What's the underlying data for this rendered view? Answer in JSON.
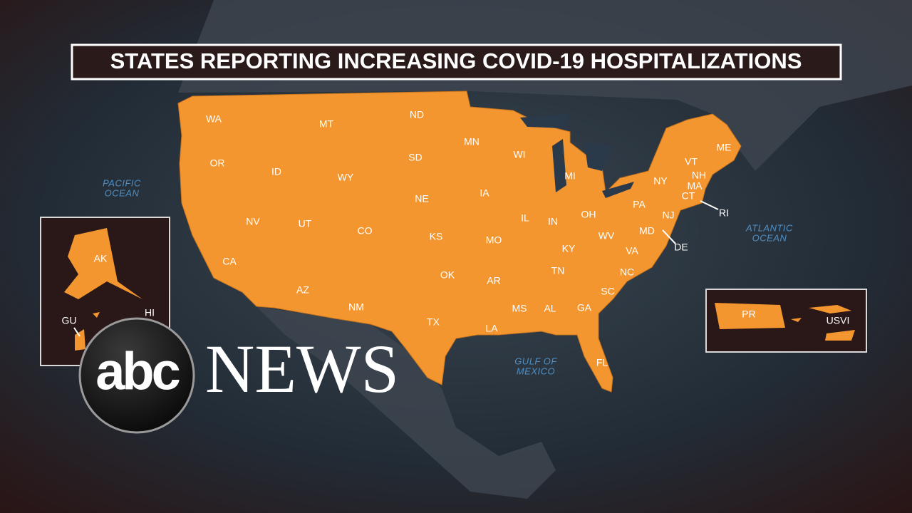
{
  "title": "STATES REPORTING INCREASING COVID-19 HOSPITALIZATIONS",
  "states": [
    "WA",
    "OR",
    "CA",
    "ID",
    "NV",
    "MT",
    "WY",
    "UT",
    "AZ",
    "CO",
    "NM",
    "ND",
    "SD",
    "NE",
    "KS",
    "OK",
    "TX",
    "MN",
    "IA",
    "MO",
    "AR",
    "LA",
    "WI",
    "IL",
    "MI",
    "IN",
    "OH",
    "KY",
    "TN",
    "MS",
    "AL",
    "GA",
    "FL",
    "SC",
    "NC",
    "VA",
    "WV",
    "MD",
    "DE",
    "PA",
    "NJ",
    "NY",
    "CT",
    "RI",
    "MA",
    "VT",
    "NH",
    "ME"
  ],
  "insets": {
    "pacific": [
      "AK",
      "GU",
      "HI"
    ],
    "caribbean": [
      "PR",
      "USVI"
    ]
  },
  "oceans": [
    [
      "PACIFIC",
      "OCEAN"
    ],
    [
      "ATLANTIC",
      "OCEAN"
    ],
    [
      "GULF OF",
      "MEXICO"
    ]
  ],
  "logo": {
    "mark": "abc",
    "wordmark": "NEWS"
  }
}
